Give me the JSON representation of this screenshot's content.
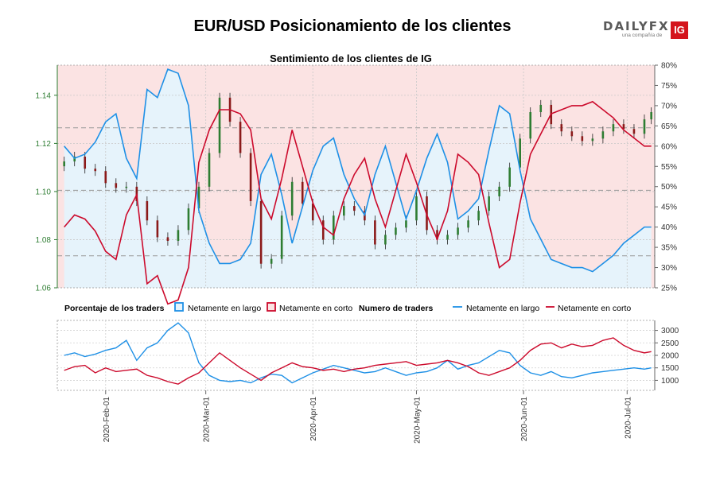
{
  "title": "EUR/USD Posicionamiento de los clientes",
  "logo": {
    "brand": "DAILYFX",
    "tagline": "una compañía de",
    "badge": "IG"
  },
  "chart_data": [
    {
      "type": "line",
      "title": "Sentimiento de los clientes de IG",
      "y_left_ticks": [
        "1.06",
        "1.08",
        "1.10",
        "1.12",
        "1.14"
      ],
      "y_left_range": [
        1.06,
        1.1525
      ],
      "y_right_ticks": [
        "25%",
        "30%",
        "35%",
        "40%",
        "45%",
        "50%",
        "55%",
        "60%",
        "65%",
        "70%",
        "75%",
        "80%"
      ],
      "y_right_range": [
        25,
        80
      ],
      "reference_lines": [
        1.1005,
        1.1265,
        1.0733
      ],
      "grid": true,
      "series": [
        {
          "name": "Netamente en largo",
          "color": "#1e90e6",
          "fill": "#e6f3fb",
          "x": [
            "2020-01-20",
            "2020-01-23",
            "2020-01-26",
            "2020-01-29",
            "2020-02-01",
            "2020-02-04",
            "2020-02-07",
            "2020-02-10",
            "2020-02-13",
            "2020-02-16",
            "2020-02-19",
            "2020-02-22",
            "2020-02-25",
            "2020-02-28",
            "2020-03-02",
            "2020-03-05",
            "2020-03-08",
            "2020-03-11",
            "2020-03-14",
            "2020-03-17",
            "2020-03-20",
            "2020-03-23",
            "2020-03-26",
            "2020-03-29",
            "2020-04-01",
            "2020-04-04",
            "2020-04-07",
            "2020-04-10",
            "2020-04-13",
            "2020-04-16",
            "2020-04-19",
            "2020-04-22",
            "2020-04-25",
            "2020-04-28",
            "2020-05-01",
            "2020-05-04",
            "2020-05-07",
            "2020-05-10",
            "2020-05-13",
            "2020-05-16",
            "2020-05-19",
            "2020-05-22",
            "2020-05-25",
            "2020-05-28",
            "2020-05-31",
            "2020-06-03",
            "2020-06-06",
            "2020-06-09",
            "2020-06-12",
            "2020-06-15",
            "2020-06-18",
            "2020-06-21",
            "2020-06-24",
            "2020-06-27",
            "2020-06-30",
            "2020-07-03",
            "2020-07-06",
            "2020-07-08"
          ],
          "values": [
            60,
            57,
            58,
            61,
            66,
            68,
            57,
            52,
            74,
            72,
            79,
            78,
            70,
            44,
            36,
            31,
            31,
            32,
            36,
            53,
            58,
            48,
            36,
            45,
            54,
            60,
            62,
            53,
            47,
            43,
            53,
            60,
            51,
            42,
            49,
            57,
            63,
            56,
            42,
            44,
            47,
            59,
            70,
            68,
            54,
            42,
            37,
            32,
            31,
            30,
            30,
            29,
            31,
            33,
            36,
            38,
            40,
            40
          ]
        },
        {
          "name": "Netamente en corto",
          "color": "#cc0a2c",
          "x": [
            "2020-01-20",
            "2020-01-23",
            "2020-01-26",
            "2020-01-29",
            "2020-02-01",
            "2020-02-04",
            "2020-02-07",
            "2020-02-10",
            "2020-02-13",
            "2020-02-16",
            "2020-02-19",
            "2020-02-22",
            "2020-02-25",
            "2020-02-28",
            "2020-03-02",
            "2020-03-05",
            "2020-03-08",
            "2020-03-11",
            "2020-03-14",
            "2020-03-17",
            "2020-03-20",
            "2020-03-23",
            "2020-03-26",
            "2020-03-29",
            "2020-04-01",
            "2020-04-04",
            "2020-04-07",
            "2020-04-10",
            "2020-04-13",
            "2020-04-16",
            "2020-04-19",
            "2020-04-22",
            "2020-04-25",
            "2020-04-28",
            "2020-05-01",
            "2020-05-04",
            "2020-05-07",
            "2020-05-10",
            "2020-05-13",
            "2020-05-16",
            "2020-05-19",
            "2020-05-22",
            "2020-05-25",
            "2020-05-28",
            "2020-05-31",
            "2020-06-03",
            "2020-06-06",
            "2020-06-09",
            "2020-06-12",
            "2020-06-15",
            "2020-06-18",
            "2020-06-21",
            "2020-06-24",
            "2020-06-27",
            "2020-06-30",
            "2020-07-03",
            "2020-07-06",
            "2020-07-08"
          ],
          "values": [
            40,
            43,
            42,
            39,
            34,
            32,
            43,
            48,
            26,
            28,
            21,
            22,
            30,
            56,
            64,
            69,
            69,
            68,
            64,
            47,
            42,
            52,
            64,
            55,
            46,
            40,
            38,
            47,
            53,
            57,
            47,
            40,
            49,
            58,
            51,
            43,
            37,
            44,
            58,
            56,
            53,
            41,
            30,
            32,
            46,
            58,
            63,
            68,
            69,
            70,
            70,
            71,
            69,
            67,
            64,
            62,
            60,
            60
          ]
        },
        {
          "name": "EUR/USD",
          "type": "candlestick",
          "color_up": "#2e7d32",
          "color_down": "#8b1a1a",
          "x": [
            "2020-01-20",
            "2020-01-23",
            "2020-01-26",
            "2020-01-29",
            "2020-02-01",
            "2020-02-04",
            "2020-02-07",
            "2020-02-10",
            "2020-02-13",
            "2020-02-16",
            "2020-02-19",
            "2020-02-22",
            "2020-02-25",
            "2020-02-28",
            "2020-03-02",
            "2020-03-05",
            "2020-03-08",
            "2020-03-11",
            "2020-03-14",
            "2020-03-17",
            "2020-03-20",
            "2020-03-23",
            "2020-03-26",
            "2020-03-29",
            "2020-04-01",
            "2020-04-04",
            "2020-04-07",
            "2020-04-10",
            "2020-04-13",
            "2020-04-16",
            "2020-04-19",
            "2020-04-22",
            "2020-04-25",
            "2020-04-28",
            "2020-05-01",
            "2020-05-04",
            "2020-05-07",
            "2020-05-10",
            "2020-05-13",
            "2020-05-16",
            "2020-05-19",
            "2020-05-22",
            "2020-05-25",
            "2020-05-28",
            "2020-05-31",
            "2020-06-03",
            "2020-06-06",
            "2020-06-09",
            "2020-06-12",
            "2020-06-15",
            "2020-06-18",
            "2020-06-21",
            "2020-06-24",
            "2020-06-27",
            "2020-06-30",
            "2020-07-03",
            "2020-07-06",
            "2020-07-08"
          ],
          "values": [
            1.1125,
            1.1145,
            1.1095,
            1.1085,
            1.1035,
            1.1015,
            1.102,
            1.096,
            1.088,
            1.081,
            1.0795,
            1.084,
            1.093,
            1.102,
            1.116,
            1.139,
            1.129,
            1.116,
            1.096,
            1.07,
            1.072,
            1.09,
            1.104,
            1.095,
            1.088,
            1.08,
            1.09,
            1.094,
            1.092,
            1.088,
            1.078,
            1.082,
            1.085,
            1.088,
            1.098,
            1.084,
            1.08,
            1.082,
            1.085,
            1.088,
            1.092,
            1.098,
            1.102,
            1.11,
            1.122,
            1.133,
            1.136,
            1.128,
            1.125,
            1.123,
            1.121,
            1.122,
            1.125,
            1.128,
            1.126,
            1.124,
            1.13,
            1.133
          ]
        }
      ]
    },
    {
      "type": "line",
      "title": "Numero de traders",
      "y_ticks": [
        "1000",
        "1500",
        "2000",
        "2500",
        "3000"
      ],
      "y_range": [
        600,
        3400
      ],
      "grid": true,
      "series": [
        {
          "name": "Netamente en largo",
          "color": "#1e90e6",
          "x": [
            "2020-01-20",
            "2020-01-23",
            "2020-01-26",
            "2020-01-29",
            "2020-02-01",
            "2020-02-04",
            "2020-02-07",
            "2020-02-10",
            "2020-02-13",
            "2020-02-16",
            "2020-02-19",
            "2020-02-22",
            "2020-02-25",
            "2020-02-28",
            "2020-03-02",
            "2020-03-05",
            "2020-03-08",
            "2020-03-11",
            "2020-03-14",
            "2020-03-17",
            "2020-03-20",
            "2020-03-23",
            "2020-03-26",
            "2020-03-29",
            "2020-04-01",
            "2020-04-04",
            "2020-04-07",
            "2020-04-10",
            "2020-04-13",
            "2020-04-16",
            "2020-04-19",
            "2020-04-22",
            "2020-04-25",
            "2020-04-28",
            "2020-05-01",
            "2020-05-04",
            "2020-05-07",
            "2020-05-10",
            "2020-05-13",
            "2020-05-16",
            "2020-05-19",
            "2020-05-22",
            "2020-05-25",
            "2020-05-28",
            "2020-05-31",
            "2020-06-03",
            "2020-06-06",
            "2020-06-09",
            "2020-06-12",
            "2020-06-15",
            "2020-06-18",
            "2020-06-21",
            "2020-06-24",
            "2020-06-27",
            "2020-06-30",
            "2020-07-03",
            "2020-07-06",
            "2020-07-08"
          ],
          "values": [
            2000,
            2100,
            1950,
            2050,
            2200,
            2300,
            2600,
            1800,
            2300,
            2500,
            3000,
            3300,
            2900,
            1700,
            1200,
            1000,
            950,
            1000,
            900,
            1100,
            1250,
            1200,
            900,
            1100,
            1300,
            1450,
            1600,
            1500,
            1400,
            1300,
            1350,
            1500,
            1350,
            1200,
            1300,
            1350,
            1500,
            1800,
            1450,
            1600,
            1700,
            1950,
            2200,
            2100,
            1600,
            1300,
            1200,
            1350,
            1150,
            1100,
            1200,
            1300,
            1350,
            1400,
            1450,
            1500,
            1450,
            1500
          ]
        },
        {
          "name": "Netamente en corto",
          "color": "#cc0a2c",
          "x": [
            "2020-01-20",
            "2020-01-23",
            "2020-01-26",
            "2020-01-29",
            "2020-02-01",
            "2020-02-04",
            "2020-02-07",
            "2020-02-10",
            "2020-02-13",
            "2020-02-16",
            "2020-02-19",
            "2020-02-22",
            "2020-02-25",
            "2020-02-28",
            "2020-03-02",
            "2020-03-05",
            "2020-03-08",
            "2020-03-11",
            "2020-03-14",
            "2020-03-17",
            "2020-03-20",
            "2020-03-23",
            "2020-03-26",
            "2020-03-29",
            "2020-04-01",
            "2020-04-04",
            "2020-04-07",
            "2020-04-10",
            "2020-04-13",
            "2020-04-16",
            "2020-04-19",
            "2020-04-22",
            "2020-04-25",
            "2020-04-28",
            "2020-05-01",
            "2020-05-04",
            "2020-05-07",
            "2020-05-10",
            "2020-05-13",
            "2020-05-16",
            "2020-05-19",
            "2020-05-22",
            "2020-05-25",
            "2020-05-28",
            "2020-05-31",
            "2020-06-03",
            "2020-06-06",
            "2020-06-09",
            "2020-06-12",
            "2020-06-15",
            "2020-06-18",
            "2020-06-21",
            "2020-06-24",
            "2020-06-27",
            "2020-06-30",
            "2020-07-03",
            "2020-07-06",
            "2020-07-08"
          ],
          "values": [
            1400,
            1550,
            1600,
            1300,
            1500,
            1350,
            1400,
            1450,
            1200,
            1100,
            950,
            850,
            1100,
            1300,
            1700,
            2100,
            1800,
            1500,
            1250,
            1000,
            1300,
            1500,
            1700,
            1550,
            1500,
            1400,
            1450,
            1350,
            1450,
            1500,
            1600,
            1650,
            1700,
            1750,
            1600,
            1650,
            1700,
            1800,
            1700,
            1550,
            1300,
            1200,
            1350,
            1500,
            1800,
            2200,
            2450,
            2500,
            2300,
            2450,
            2350,
            2400,
            2600,
            2700,
            2400,
            2200,
            2100,
            2150
          ]
        }
      ]
    }
  ],
  "dates": [
    "2020-Feb-01",
    "2020-Mar-01",
    "2020-Apr-01",
    "2020-May-01",
    "2020-Jun-01",
    "2020-Jul-01"
  ],
  "legend": {
    "pct_title": "Porcentaje de los traders",
    "long_label": "Netamente en largo",
    "short_label": "Netamente en corto",
    "count_title": "Numero de traders",
    "count_long_label": "Netamente en largo",
    "count_short_label": "Netamente en corto"
  }
}
